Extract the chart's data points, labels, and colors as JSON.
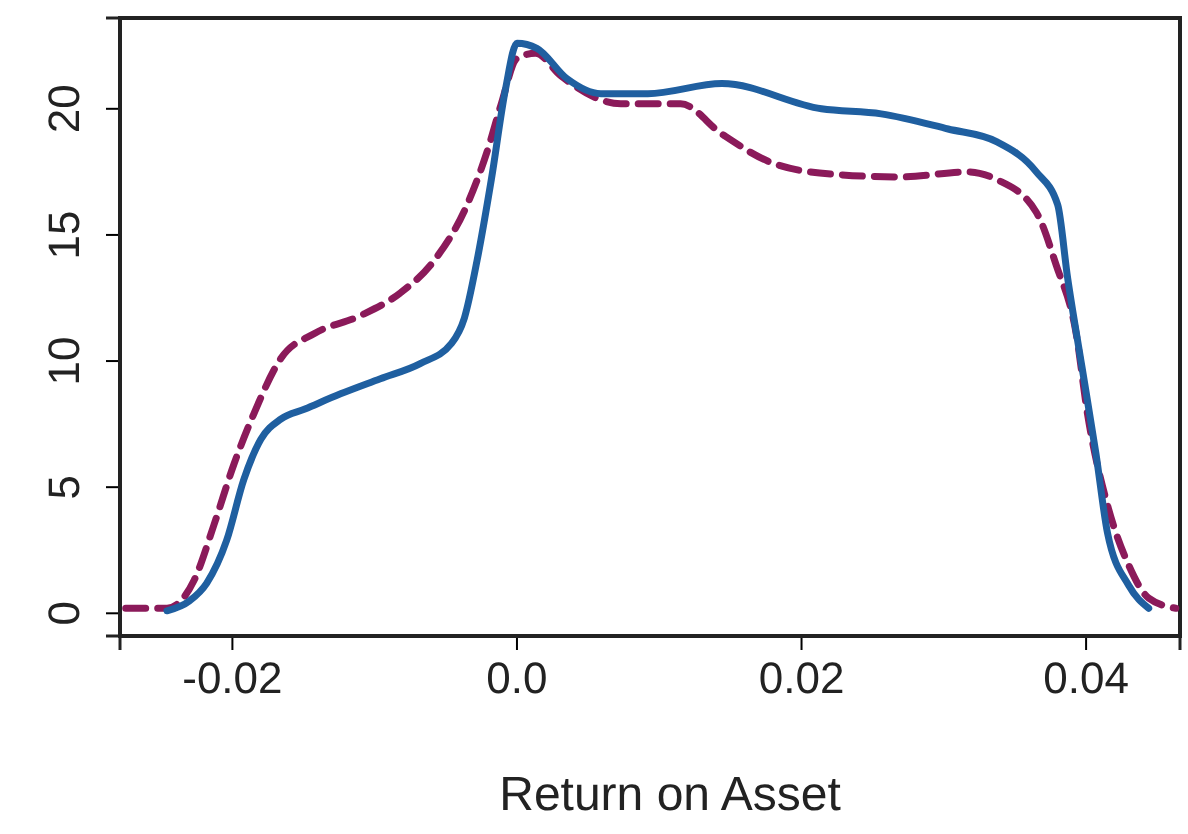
{
  "chart_data": {
    "type": "line",
    "xlabel": "Return on Asset",
    "xlim": [
      -0.0279,
      0.0466
    ],
    "ylim": [
      -0.9,
      23.6
    ],
    "xticks": [
      {
        "value": -0.02,
        "label": "-0.02"
      },
      {
        "value": 0,
        "label": "0.0"
      },
      {
        "value": 0.02,
        "label": "0.02"
      },
      {
        "value": 0.04,
        "label": "0.04"
      }
    ],
    "yticks": [
      0,
      5,
      10,
      15,
      20
    ],
    "series": [
      {
        "color": "#8b1a5a",
        "line_style": "dashed",
        "x": [
          -0.0275,
          -0.0246,
          -0.0227,
          -0.0213,
          -0.0199,
          -0.0185,
          -0.0166,
          -0.0142,
          -0.011,
          -0.0082,
          -0.0058,
          -0.0035,
          -0.0021,
          -0.0011,
          0,
          0.0013,
          0.0031,
          0.0073,
          0.0115,
          0.0144,
          0.0182,
          0.0224,
          0.027,
          0.0317,
          0.0337,
          0.0365,
          0.0379,
          0.0393,
          0.0401,
          0.0415,
          0.043,
          0.0444,
          0.0463
        ],
        "values": [
          0.2,
          0.2,
          1.3,
          3.5,
          5.9,
          7.9,
          10.1,
          11.1,
          11.8,
          12.7,
          14,
          16.2,
          18.3,
          20.2,
          22,
          22.2,
          21.3,
          20.2,
          20.2,
          19,
          17.8,
          17.4,
          17.3,
          17.5,
          17.2,
          15.9,
          13.8,
          11.1,
          7.9,
          4.3,
          1.9,
          0.6,
          0.2
        ]
      },
      {
        "color": "#1f5fa0",
        "line_style": "solid",
        "x": [
          -0.0246,
          -0.023,
          -0.0218,
          -0.0204,
          -0.0192,
          -0.018,
          -0.0166,
          -0.0149,
          -0.0124,
          -0.0096,
          -0.0068,
          -0.0046,
          -0.0037,
          -0.0028,
          -0.0018,
          -0.0008,
          0,
          0.0014,
          0.0035,
          0.0059,
          0.0092,
          0.0144,
          0.0214,
          0.0256,
          0.0303,
          0.0337,
          0.0365,
          0.038,
          0.0387,
          0.0397,
          0.0407,
          0.0415,
          0.043,
          0.0444
        ],
        "values": [
          0.1,
          0.5,
          1.2,
          2.9,
          5.3,
          6.9,
          7.7,
          8.1,
          8.7,
          9.3,
          9.9,
          10.7,
          11.7,
          14,
          17.2,
          20.8,
          22.6,
          22.4,
          21.2,
          20.6,
          20.6,
          21,
          20,
          19.8,
          19.2,
          18.7,
          17.5,
          16.2,
          13.3,
          9.8,
          6.3,
          3.2,
          1.1,
          0.2
        ]
      }
    ]
  }
}
